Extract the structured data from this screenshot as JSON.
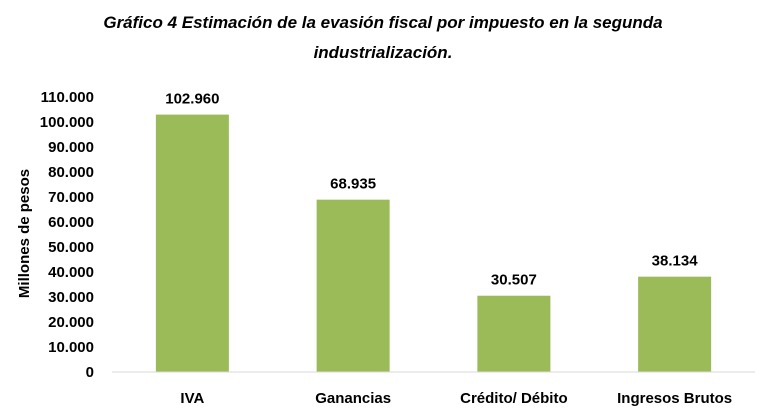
{
  "chart_data": {
    "type": "bar",
    "title_line1": "Gráfico 4 Estimación de la evasión fiscal por impuesto en la segunda",
    "title_line2": "industrialización.",
    "xlabel": "",
    "ylabel": "Millones de pesos",
    "ylim": [
      0,
      110000
    ],
    "ytick_step": 10000,
    "yticks": [
      "0",
      "10.000",
      "20.000",
      "30.000",
      "40.000",
      "50.000",
      "60.000",
      "70.000",
      "80.000",
      "90.000",
      "100.000",
      "110.000"
    ],
    "categories": [
      "IVA",
      "Ganancias",
      "Crédito/ Débito",
      "Ingresos Brutos"
    ],
    "values": [
      102960,
      68935,
      30507,
      38134
    ],
    "value_labels": [
      "102.960",
      "68.935",
      "30.507",
      "38.134"
    ],
    "bar_color": "#9bbb59",
    "grid": false,
    "legend": "none"
  }
}
